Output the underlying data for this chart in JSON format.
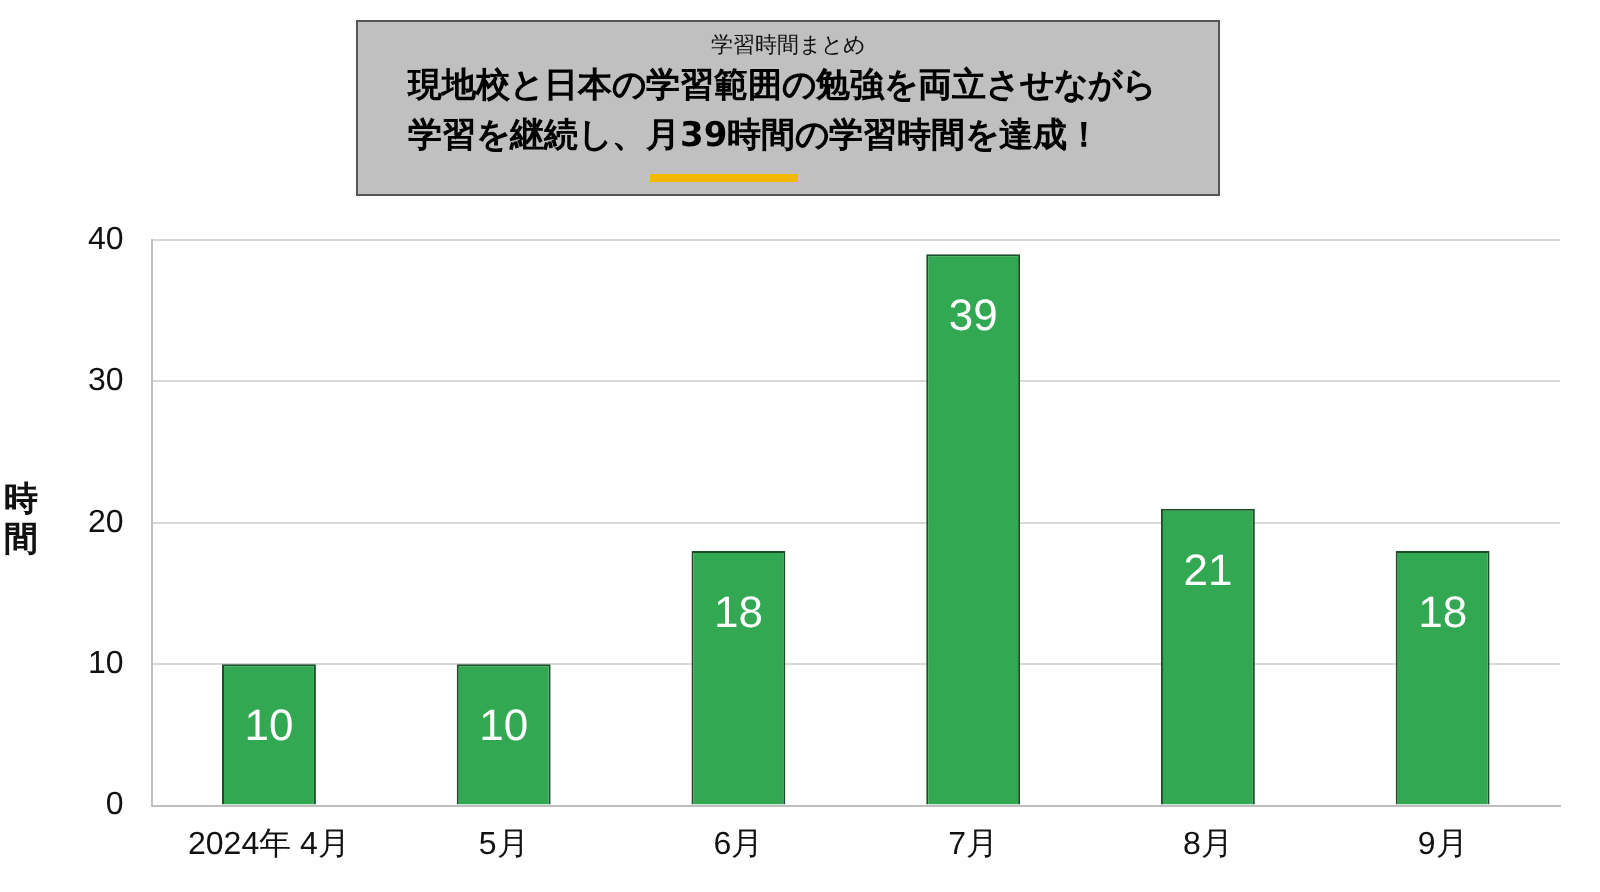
{
  "chart_data": {
    "type": "bar",
    "subtitle": "学習時間まとめ",
    "title": "現地校と日本の学習範囲の勉強を両立させながら学習を継続し、月39時間の学習時間を達成！",
    "ylabel": "時間",
    "categories": [
      "2024年 4月",
      "5月",
      "6月",
      "7月",
      "8月",
      "9月"
    ],
    "values": [
      10,
      10,
      18,
      39,
      21,
      18
    ],
    "color": "#33a852",
    "ylim": [
      0,
      40
    ],
    "yticks": [
      0,
      10,
      20,
      30,
      40
    ],
    "grid": "y",
    "data_labels": true,
    "legend": false
  }
}
